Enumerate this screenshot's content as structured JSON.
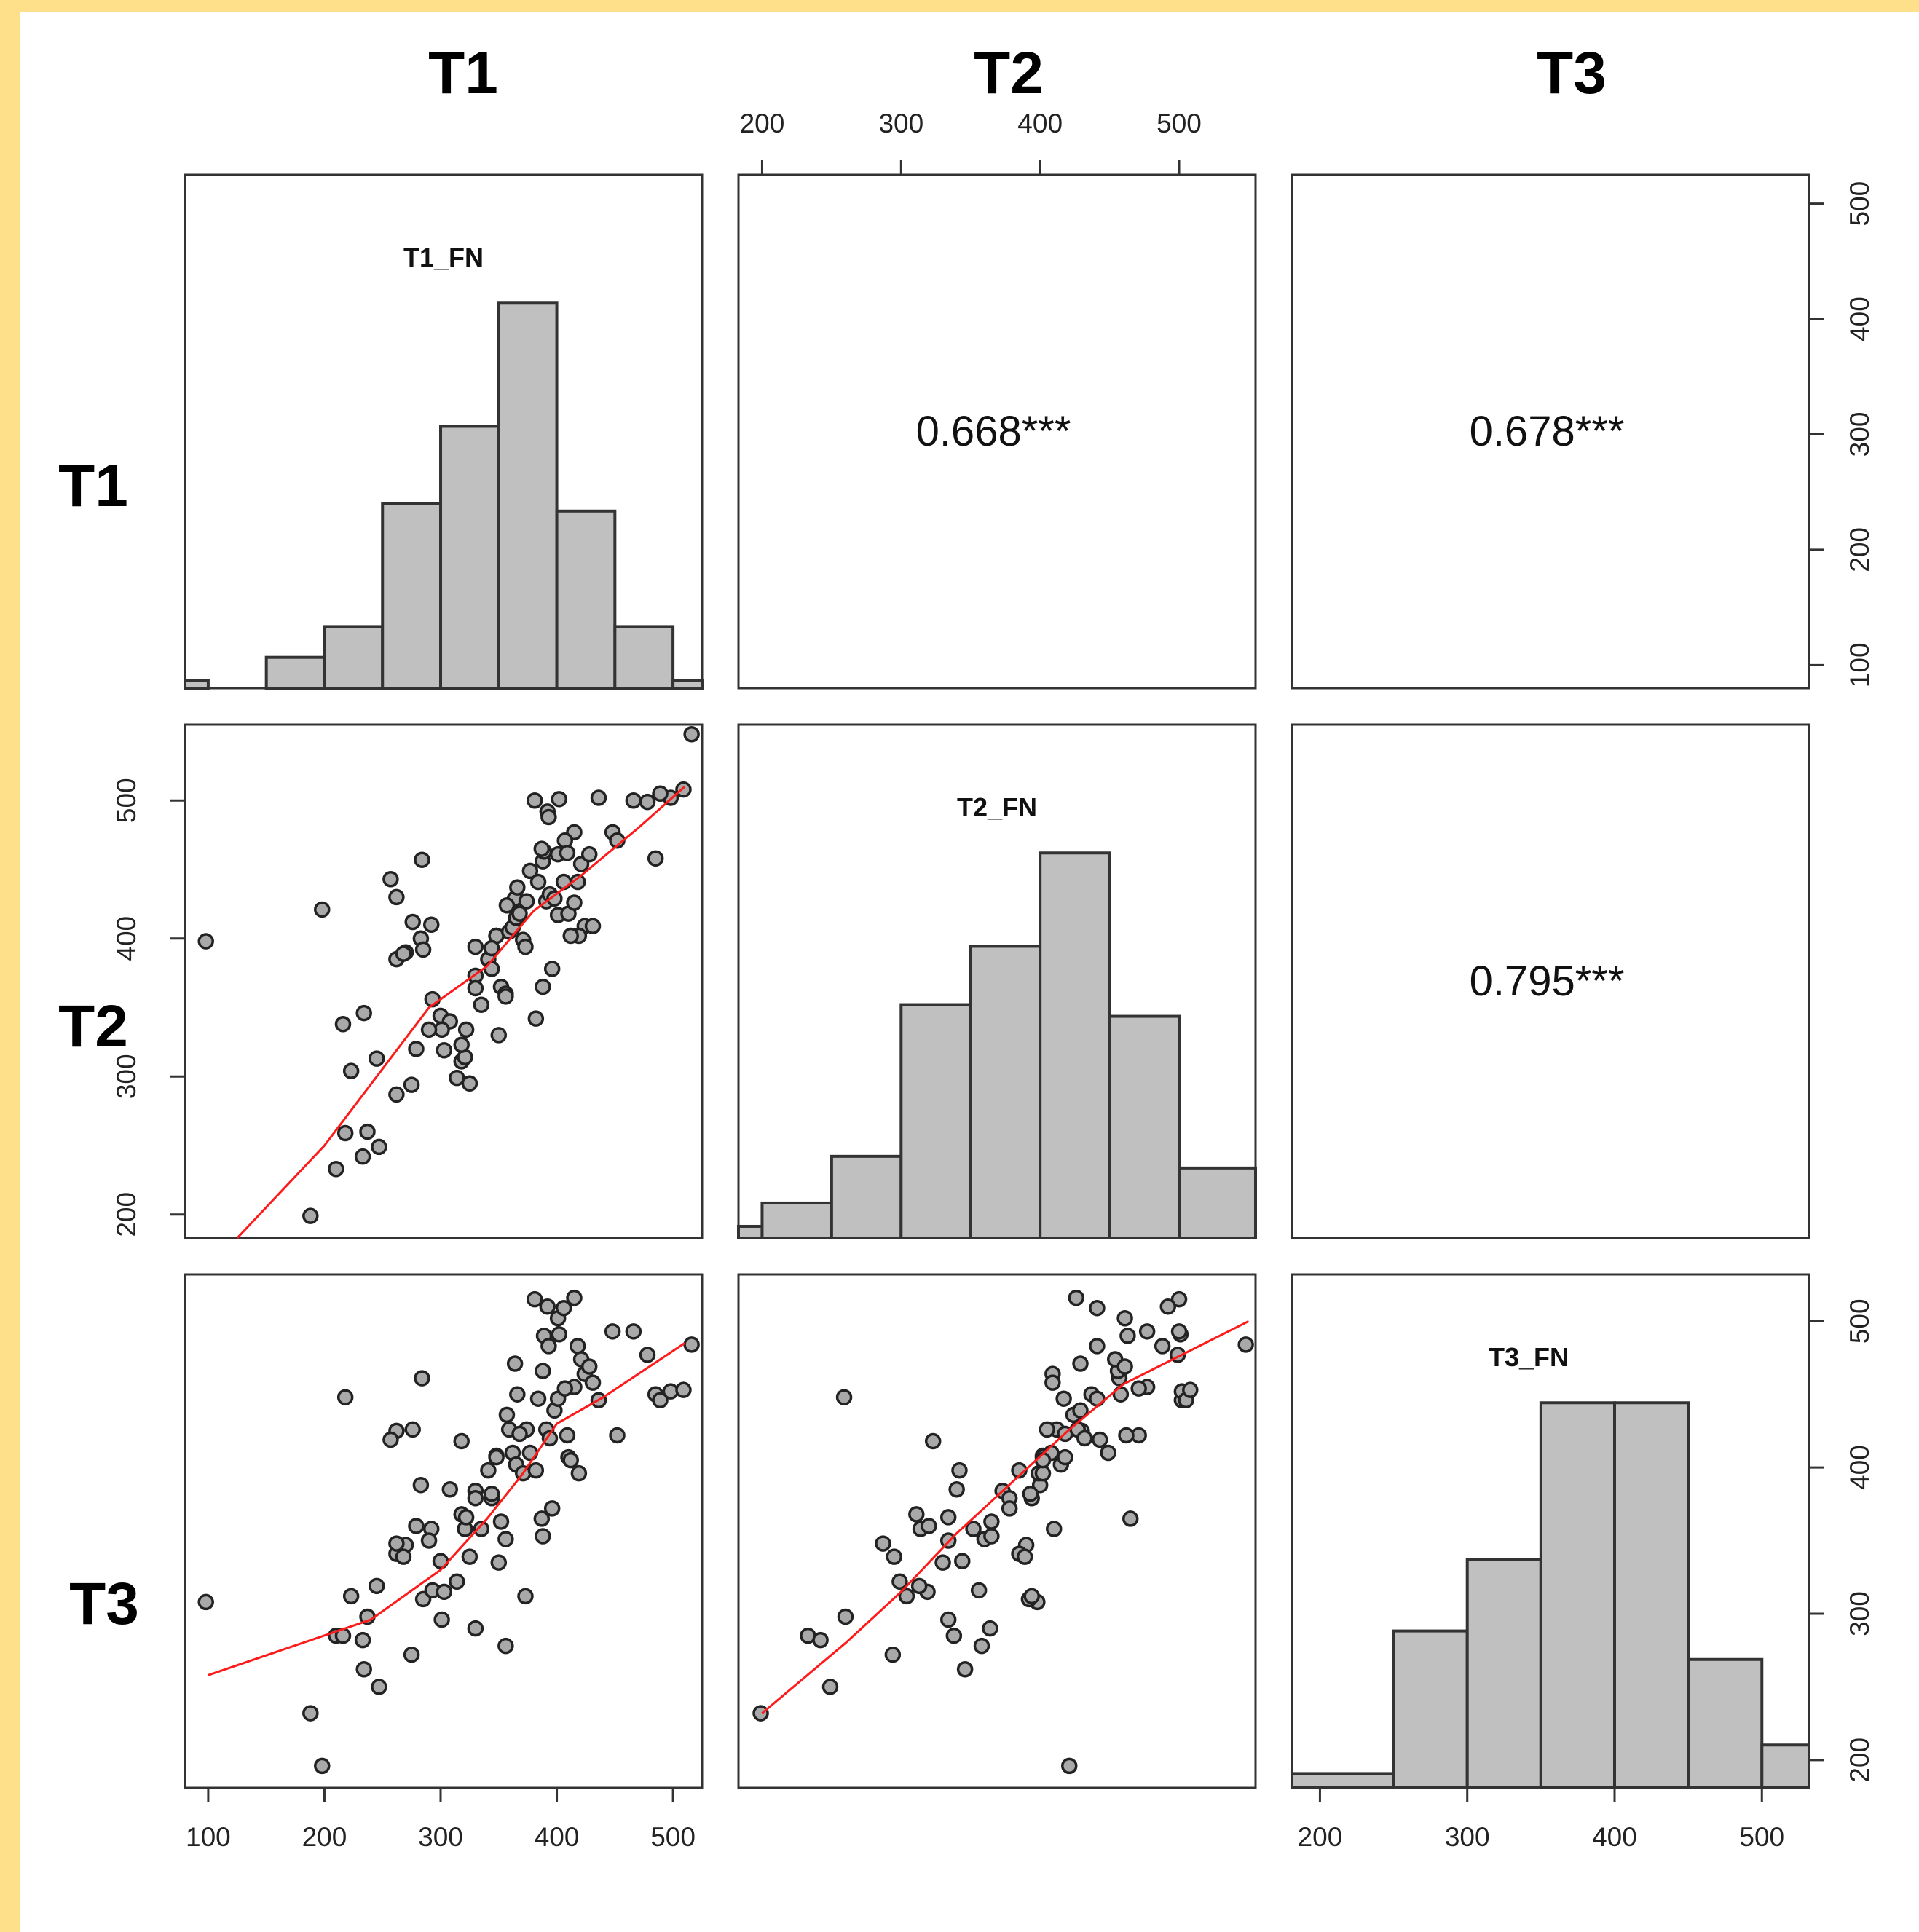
{
  "chart_data": {
    "type": "scatter",
    "variables": [
      "T1",
      "T2",
      "T3"
    ],
    "variable_titles": [
      "T1",
      "T2",
      "T3"
    ],
    "histogram_labels": [
      "T1_FN",
      "T2_FN",
      "T3_FN"
    ],
    "correlations": [
      {
        "row": 0,
        "col": 1,
        "text": "0.668***"
      },
      {
        "row": 0,
        "col": 2,
        "text": "0.678***"
      },
      {
        "row": 1,
        "col": 2,
        "text": "0.795***"
      }
    ],
    "ranges": [
      [
        80,
        525
      ],
      [
        183,
        555
      ],
      [
        181,
        532
      ]
    ],
    "ticks": {
      "T1": [
        "100",
        "200",
        "300",
        "400",
        "500"
      ],
      "T2": [
        "200",
        "300",
        "400",
        "500"
      ],
      "T3": [
        "200",
        "300",
        "400",
        "500"
      ]
    },
    "histograms": [
      {
        "variable": "T1",
        "bins": [
          [
            80,
            100
          ],
          [
            100,
            150
          ],
          [
            150,
            200
          ],
          [
            200,
            250
          ],
          [
            250,
            300
          ],
          [
            300,
            350
          ],
          [
            350,
            400
          ],
          [
            400,
            450
          ],
          [
            450,
            500
          ],
          [
            500,
            525
          ]
        ],
        "counts": [
          1,
          0,
          4,
          8,
          24,
          34,
          50,
          23,
          8,
          1
        ]
      },
      {
        "variable": "T2",
        "bins": [
          [
            183,
            200
          ],
          [
            200,
            250
          ],
          [
            250,
            300
          ],
          [
            300,
            350
          ],
          [
            350,
            400
          ],
          [
            400,
            450
          ],
          [
            450,
            500
          ],
          [
            500,
            555
          ]
        ],
        "counts": [
          1,
          3,
          7,
          20,
          25,
          33,
          19,
          6
        ]
      },
      {
        "variable": "T3",
        "bins": [
          [
            181,
            250
          ],
          [
            250,
            300
          ],
          [
            300,
            350
          ],
          [
            350,
            400
          ],
          [
            400,
            450
          ],
          [
            450,
            500
          ],
          [
            500,
            532
          ]
        ],
        "counts": [
          1,
          11,
          16,
          27,
          27,
          9,
          3
        ]
      }
    ],
    "points": {
      "T1": [
        98,
        198,
        188,
        218,
        210,
        223,
        233,
        247,
        237,
        262,
        257,
        276,
        284,
        283,
        292,
        270,
        262,
        268,
        285,
        300,
        293,
        303,
        318,
        314,
        321,
        325,
        308,
        322,
        335,
        330,
        341,
        330,
        348,
        344,
        352,
        356,
        348,
        344,
        364,
        359,
        357,
        362,
        366,
        365,
        371,
        374,
        368,
        377,
        381,
        384,
        388,
        391,
        389,
        392,
        394,
        398,
        401,
        406,
        401,
        410,
        415,
        418,
        421,
        424,
        415,
        419,
        407,
        402,
        393,
        412,
        428,
        436,
        448,
        452,
        478,
        485,
        498,
        466,
        489,
        516,
        509,
        279,
        301,
        262,
        330,
        318,
        290,
        275,
        245,
        234,
        216,
        396,
        356,
        373,
        388,
        409,
        350,
        387,
        382,
        431
      ],
      "T2": [
        398,
        421,
        199,
        259,
        233,
        304,
        242,
        249,
        260,
        430,
        443,
        412,
        457,
        400,
        410,
        390,
        385,
        389,
        392,
        344,
        356,
        319,
        311,
        299,
        314,
        295,
        340,
        334,
        352,
        373,
        385,
        394,
        402,
        378,
        365,
        360,
        402,
        393,
        429,
        405,
        424,
        408,
        437,
        415,
        399,
        427,
        418,
        449,
        500,
        441,
        456,
        427,
        463,
        492,
        432,
        429,
        461,
        441,
        417,
        418,
        426,
        441,
        454,
        409,
        477,
        402,
        471,
        501,
        488,
        402,
        461,
        502,
        477,
        471,
        499,
        458,
        502,
        500,
        505,
        548,
        508,
        320,
        334,
        287,
        364,
        323,
        334,
        294,
        313,
        346,
        338,
        378,
        358,
        394,
        365,
        462,
        330,
        465,
        342,
        409
      ],
      "T3": [
        308,
        196,
        232,
        448,
        285,
        312,
        282,
        250,
        298,
        425,
        419,
        426,
        461,
        388,
        358,
        347,
        341,
        339,
        310,
        336,
        316,
        315,
        368,
        322,
        358,
        339,
        385,
        366,
        358,
        384,
        398,
        379,
        408,
        379,
        363,
        351,
        407,
        382,
        471,
        426,
        436,
        410,
        450,
        402,
        396,
        426,
        423,
        410,
        515,
        447,
        466,
        426,
        490,
        510,
        420,
        439,
        502,
        509,
        447,
        407,
        516,
        483,
        474,
        464,
        455,
        396,
        454,
        491,
        483,
        405,
        469,
        446,
        493,
        422,
        477,
        450,
        452,
        493,
        446,
        484,
        453,
        360,
        296,
        348,
        290,
        418,
        350,
        272,
        319,
        262,
        285,
        372,
        278,
        312,
        353,
        422,
        335,
        365,
        398,
        458
      ]
    },
    "smooth": {
      "T1_T2": [
        [
          125,
          183
        ],
        [
          200,
          250
        ],
        [
          290,
          350
        ],
        [
          340,
          380
        ],
        [
          380,
          420
        ],
        [
          420,
          445
        ],
        [
          470,
          480
        ],
        [
          510,
          510
        ]
      ],
      "T1_T3": [
        [
          100,
          258
        ],
        [
          240,
          296
        ],
        [
          300,
          330
        ],
        [
          340,
          365
        ],
        [
          370,
          395
        ],
        [
          400,
          430
        ],
        [
          440,
          448
        ],
        [
          510,
          485
        ]
      ],
      "T2_T3": [
        [
          200,
          232
        ],
        [
          260,
          280
        ],
        [
          300,
          315
        ],
        [
          340,
          355
        ],
        [
          380,
          390
        ],
        [
          420,
          425
        ],
        [
          460,
          457
        ],
        [
          550,
          500
        ]
      ]
    },
    "smooth_color": "#ff1a1a"
  }
}
